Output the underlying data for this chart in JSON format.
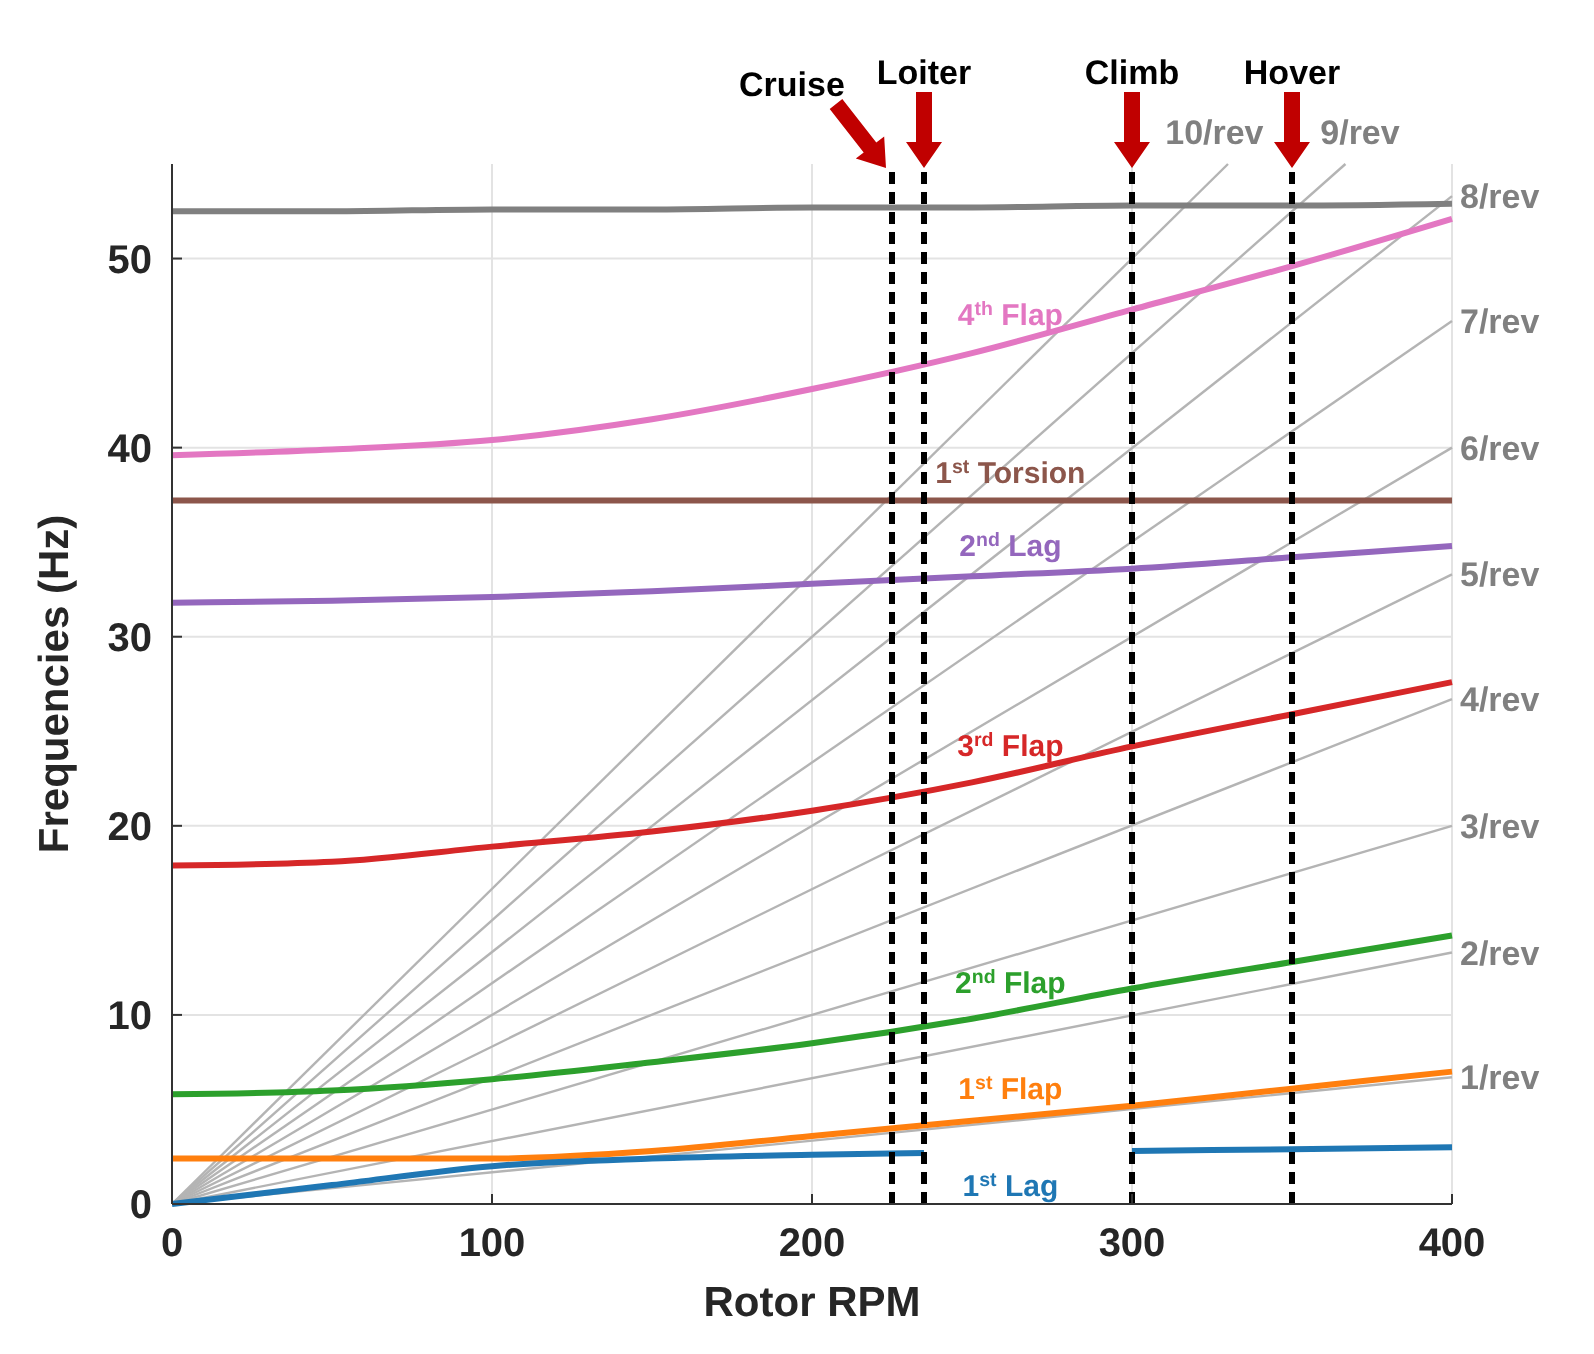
{
  "chart_data": {
    "type": "line",
    "xlabel": "Rotor RPM",
    "ylabel": "Frequencies (Hz)",
    "xlim": [
      0,
      400
    ],
    "ylim": [
      0,
      55
    ],
    "xticks": [
      0,
      100,
      200,
      300,
      400
    ],
    "yticks": [
      0,
      10,
      20,
      30,
      40,
      50
    ],
    "grid": true,
    "marker": "none",
    "line_style": "solid",
    "x": [
      0,
      50,
      100,
      150,
      200,
      250,
      300,
      350,
      400
    ],
    "series": [
      {
        "color": "#808080",
        "values": [
          52.5,
          52.5,
          52.6,
          52.6,
          52.7,
          52.7,
          52.8,
          52.8,
          52.9
        ]
      },
      {
        "name": "4$^{th}$ Flap",
        "color": "#e377c2",
        "values": [
          39.6,
          39.9,
          40.4,
          41.5,
          43.1,
          45.0,
          47.3,
          49.6,
          52.1
        ]
      },
      {
        "name": "1$^{st}$ Torsion",
        "color": "#8c564b",
        "values": [
          37.2,
          37.2,
          37.2,
          37.2,
          37.2,
          37.2,
          37.2,
          37.2,
          37.2
        ]
      },
      {
        "name": "2$^{nd}$ Lag",
        "color": "#9467bd",
        "values": [
          31.8,
          31.9,
          32.1,
          32.4,
          32.8,
          33.2,
          33.6,
          34.2,
          34.8
        ]
      },
      {
        "name": "3$^{rd}$ Flap",
        "color": "#d62728",
        "values": [
          17.9,
          18.1,
          18.9,
          19.7,
          20.8,
          22.3,
          24.2,
          25.9,
          27.6
        ]
      },
      {
        "name": "2$^{nd}$ Flap",
        "color": "#2ca02c",
        "values": [
          5.8,
          6.0,
          6.6,
          7.5,
          8.5,
          9.8,
          11.4,
          12.8,
          14.2
        ]
      },
      {
        "name": "1$^{st}$ Flap",
        "color": "#ff7f0e",
        "values": [
          2.4,
          2.4,
          2.4,
          2.8,
          3.6,
          4.4,
          5.2,
          6.1,
          7.0
        ]
      },
      {
        "name": "1$^{st}$ Lag",
        "color": "#1f77b4",
        "x": [
          0,
          25,
          50,
          100,
          150,
          200,
          235,
          265,
          300,
          350,
          400
        ],
        "values": [
          0,
          0.5,
          1.0,
          2.0,
          2.4,
          2.6,
          2.7,
          null,
          2.8,
          2.9,
          3.0
        ]
      },
      {
        "name": "1/rev",
        "color": "#b4b4b4",
        "x": [
          0,
          400
        ],
        "values": [
          0,
          6.7
        ]
      },
      {
        "name": "2/rev",
        "color": "#b4b4b4",
        "x": [
          0,
          400
        ],
        "values": [
          0,
          13.3
        ]
      },
      {
        "name": "3/rev",
        "color": "#b4b4b4",
        "x": [
          0,
          400
        ],
        "values": [
          0,
          20
        ]
      },
      {
        "name": "4/rev",
        "color": "#b4b4b4",
        "x": [
          0,
          400
        ],
        "values": [
          0,
          26.7
        ]
      },
      {
        "name": "5/rev",
        "color": "#b4b4b4",
        "x": [
          0,
          400
        ],
        "values": [
          0,
          33.3
        ]
      },
      {
        "name": "6/rev",
        "color": "#b4b4b4",
        "x": [
          0,
          400
        ],
        "values": [
          0,
          40
        ]
      },
      {
        "name": "7/rev",
        "color": "#b4b4b4",
        "x": [
          0,
          400
        ],
        "values": [
          0,
          46.7
        ]
      },
      {
        "name": "8/rev",
        "color": "#b4b4b4",
        "x": [
          0,
          400
        ],
        "values": [
          0,
          53.3
        ]
      },
      {
        "name": "9/rev",
        "color": "#b4b4b4",
        "x": [
          0,
          366.7
        ],
        "values": [
          0,
          55
        ]
      },
      {
        "name": "10/rev",
        "color": "#b4b4b4",
        "x": [
          0,
          330
        ],
        "values": [
          0,
          55
        ]
      }
    ],
    "ref_lines": [
      {
        "axis": "x",
        "value": 225,
        "label": "Cruise",
        "color": "#000000",
        "line_style": "dashed"
      },
      {
        "axis": "x",
        "value": 235,
        "label": "Loiter",
        "color": "#000000",
        "line_style": "dashed"
      },
      {
        "axis": "x",
        "value": 300,
        "label": "Climb",
        "color": "#000000",
        "line_style": "dashed"
      },
      {
        "axis": "x",
        "value": 350,
        "label": "Hover",
        "color": "#000000",
        "line_style": "dashed"
      }
    ]
  }
}
